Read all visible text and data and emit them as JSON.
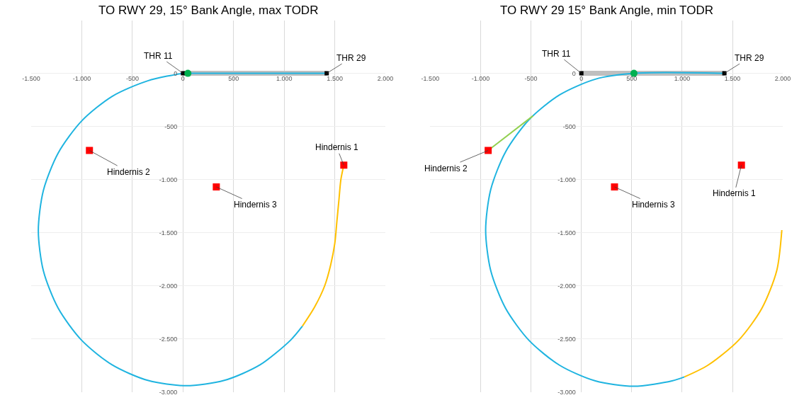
{
  "chart_data": [
    {
      "type": "line",
      "title": "TO RWY 29, 15° Bank Angle, max TODR",
      "xlim": [
        -1500,
        2000
      ],
      "ylim": [
        -3000,
        500
      ],
      "xticks": [
        {
          "value": -1500,
          "label": "-1.500"
        },
        {
          "value": -1000,
          "label": "-1.000"
        },
        -500,
        0,
        500,
        {
          "value": 1000,
          "label": "1.000"
        },
        {
          "value": 1500,
          "label": "1.500"
        },
        {
          "value": 2000,
          "label": "2.000"
        }
      ],
      "yticks": [
        0,
        -500,
        {
          "value": -1000,
          "label": "-1.000"
        },
        {
          "value": -1500,
          "label": "-1.500"
        },
        {
          "value": -2000,
          "label": "-2.000"
        },
        {
          "value": -2500,
          "label": "-2.500"
        },
        {
          "value": -3000,
          "label": "-3.000"
        }
      ],
      "grid": true,
      "series": [
        {
          "color": "#bfbfbf",
          "x": [
            0,
            1420
          ],
          "values": [
            0,
            0
          ]
        },
        {
          "color": "#1fb4e0",
          "x": [
            1420,
            48,
            0,
            -348,
            -700,
            -1002,
            -1234,
            -1380,
            -1430,
            -1380,
            -1234,
            -1002,
            -700,
            -348,
            30,
            408,
            760,
            1062,
            1180
          ],
          "values": [
            0,
            0,
            0,
            -70,
            -216,
            -448,
            -750,
            -1102,
            -1480,
            -1858,
            -2210,
            -2512,
            -2744,
            -2890,
            -2940,
            -2890,
            -2744,
            -2512,
            -2379
          ]
        },
        {
          "color": "#ffc000",
          "x": [
            1180,
            1300,
            1400,
            1460,
            1500,
            1520,
            1540,
            1560,
            1589
          ],
          "values": [
            -2379,
            -2200,
            -2000,
            -1800,
            -1600,
            -1400,
            -1200,
            -1000,
            -864
          ]
        },
        {
          "type": "scatter",
          "marker": "square",
          "color": "#000000",
          "x": [
            0,
            1420
          ],
          "values": [
            0,
            0
          ]
        },
        {
          "type": "scatter",
          "marker": "circle",
          "color": "#00b050",
          "x": [
            48
          ],
          "values": [
            0
          ]
        },
        {
          "type": "scatter",
          "marker": "square",
          "color": "#ff0000",
          "x": [
            1589,
            -925,
            329
          ],
          "values": [
            -864,
            -726,
            -1069
          ]
        }
      ],
      "annotations": [
        {
          "text": "THR 11",
          "x": 0,
          "y": 0
        },
        {
          "text": "THR 29",
          "x": 1420,
          "y": 0
        },
        {
          "text": "Hindernis 1",
          "x": 1589,
          "y": -864
        },
        {
          "text": "Hindernis 2",
          "x": -925,
          "y": -726
        },
        {
          "text": "Hindernis 3",
          "x": 329,
          "y": -1069
        }
      ]
    },
    {
      "type": "line",
      "title": "TO RWY 29 15° Bank Angle, min TODR",
      "xlim": [
        -1500,
        2000
      ],
      "ylim": [
        -3000,
        500
      ],
      "xticks": [
        {
          "value": -1500,
          "label": "-1.500"
        },
        {
          "value": -1000,
          "label": "-1.000"
        },
        -500,
        0,
        500,
        {
          "value": 1000,
          "label": "1.000"
        },
        {
          "value": 1500,
          "label": "1.500"
        },
        {
          "value": 2000,
          "label": "2.000"
        }
      ],
      "yticks": [
        0,
        -500,
        {
          "value": -1000,
          "label": "-1.000"
        },
        {
          "value": -1500,
          "label": "-1.500"
        },
        {
          "value": -2000,
          "label": "-2.000"
        },
        {
          "value": -2500,
          "label": "-2.500"
        },
        {
          "value": -3000,
          "label": "-3.000"
        }
      ],
      "grid": true,
      "series": [
        {
          "color": "#bfbfbf",
          "x": [
            0,
            1420
          ],
          "values": [
            0,
            0
          ]
        },
        {
          "color": "#1fb4e0",
          "x": [
            1420,
            522,
            139,
            -215,
            -519,
            -753,
            -900,
            -950,
            -900,
            -753,
            -519,
            -215,
            139,
            520,
            900,
            1023
          ],
          "values": [
            0,
            0,
            -55,
            -202,
            -436,
            -740,
            -1095,
            -1475,
            -1855,
            -2210,
            -2514,
            -2748,
            -2895,
            -2945,
            -2895,
            -2857
          ]
        },
        {
          "color": "#ffc000",
          "x": [
            1023,
            1255,
            1559,
            1793,
            1940,
            1990
          ],
          "values": [
            -2857,
            -2748,
            -2514,
            -2210,
            -1855,
            -1475
          ]
        },
        {
          "color": "#92d050",
          "x": [
            -925,
            -480
          ],
          "values": [
            -726,
            -400
          ]
        },
        {
          "type": "scatter",
          "marker": "square",
          "color": "#000000",
          "x": [
            0,
            1420
          ],
          "values": [
            0,
            0
          ]
        },
        {
          "type": "scatter",
          "marker": "circle",
          "color": "#00b050",
          "x": [
            522
          ],
          "values": [
            0
          ]
        },
        {
          "type": "scatter",
          "marker": "square",
          "color": "#ff0000",
          "x": [
            1589,
            -925,
            329
          ],
          "values": [
            -864,
            -726,
            -1069
          ]
        }
      ],
      "annotations": [
        {
          "text": "THR 11",
          "x": 0,
          "y": 0
        },
        {
          "text": "THR 29",
          "x": 1420,
          "y": 0
        },
        {
          "text": "Hindernis 1",
          "x": 1589,
          "y": -864
        },
        {
          "text": "Hindernis 2",
          "x": -925,
          "y": -726
        },
        {
          "text": "Hindernis 3",
          "x": 329,
          "y": -1069
        }
      ]
    }
  ]
}
